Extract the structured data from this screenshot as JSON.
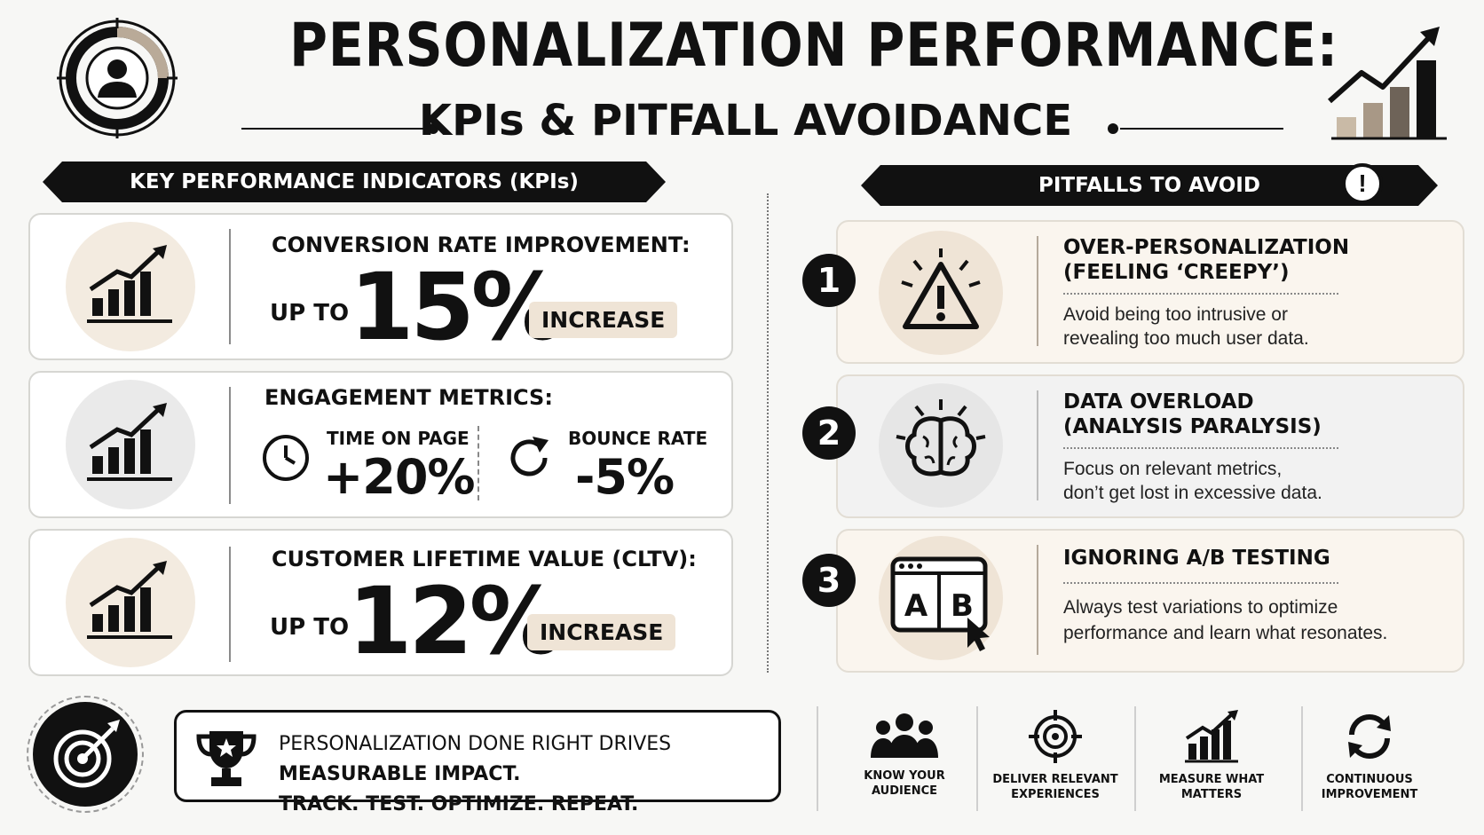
{
  "header": {
    "title": "PERSONALIZATION PERFORMANCE:",
    "subtitle": "KPIs & PITFALL AVOIDANCE"
  },
  "kpi_section": {
    "banner": "KEY PERFORMANCE INDICATORS (KPIs)",
    "cards": [
      {
        "label": "CONVERSION RATE IMPROVEMENT:",
        "prefix": "UP TO",
        "value": "15%",
        "badge": "INCREASE"
      },
      {
        "label": "ENGAGEMENT METRICS:",
        "metrics": [
          {
            "label": "TIME ON PAGE",
            "value": "+20%",
            "icon": "clock-icon"
          },
          {
            "label": "BOUNCE RATE",
            "value": "-5%",
            "icon": "refresh-icon"
          }
        ]
      },
      {
        "label": "CUSTOMER LIFETIME VALUE (CLTV):",
        "prefix": "UP TO",
        "value": "12%",
        "badge": "INCREASE"
      }
    ]
  },
  "pitfall_section": {
    "banner": "PITFALLS TO AVOID",
    "badge": "!",
    "items": [
      {
        "number": "1",
        "title_line1": "OVER-PERSONALIZATION",
        "title_line2": "(FEELING ‘CREEPY’)",
        "desc_line1": "Avoid being too intrusive or",
        "desc_line2": "revealing too much user data.",
        "icon": "warning-icon"
      },
      {
        "number": "2",
        "title_line1": "DATA OVERLOAD",
        "title_line2": "(ANALYSIS PARALYSIS)",
        "desc_line1": "Focus on relevant metrics,",
        "desc_line2": "don’t get lost in excessive data.",
        "icon": "brain-icon"
      },
      {
        "number": "3",
        "title_line1": "IGNORING A/B TESTING",
        "desc_line1": "Always test variations to optimize",
        "desc_line2": "performance and learn what resonates.",
        "icon": "ab-test-icon",
        "ab_a": "A",
        "ab_b": "B"
      }
    ]
  },
  "callout": {
    "line1_normal": "PERSONALIZATION DONE RIGHT DRIVES",
    "line1_bold": "MEASURABLE IMPACT.",
    "line2": "TRACK. TEST. OPTIMIZE. REPEAT."
  },
  "pillars": [
    {
      "line1": "KNOW YOUR",
      "line2": "AUDIENCE",
      "icon": "people-icon"
    },
    {
      "line1": "DELIVER RELEVANT",
      "line2": "EXPERIENCES",
      "icon": "crosshair-icon"
    },
    {
      "line1": "MEASURE WHAT",
      "line2": "MATTERS",
      "icon": "bar-chart-icon"
    },
    {
      "line1": "CONTINUOUS",
      "line2": "IMPROVEMENT",
      "icon": "cycle-icon"
    }
  ],
  "colors": {
    "accent_beige": "#efe4d6",
    "ink": "#111111",
    "gray_card": "#efefef"
  }
}
